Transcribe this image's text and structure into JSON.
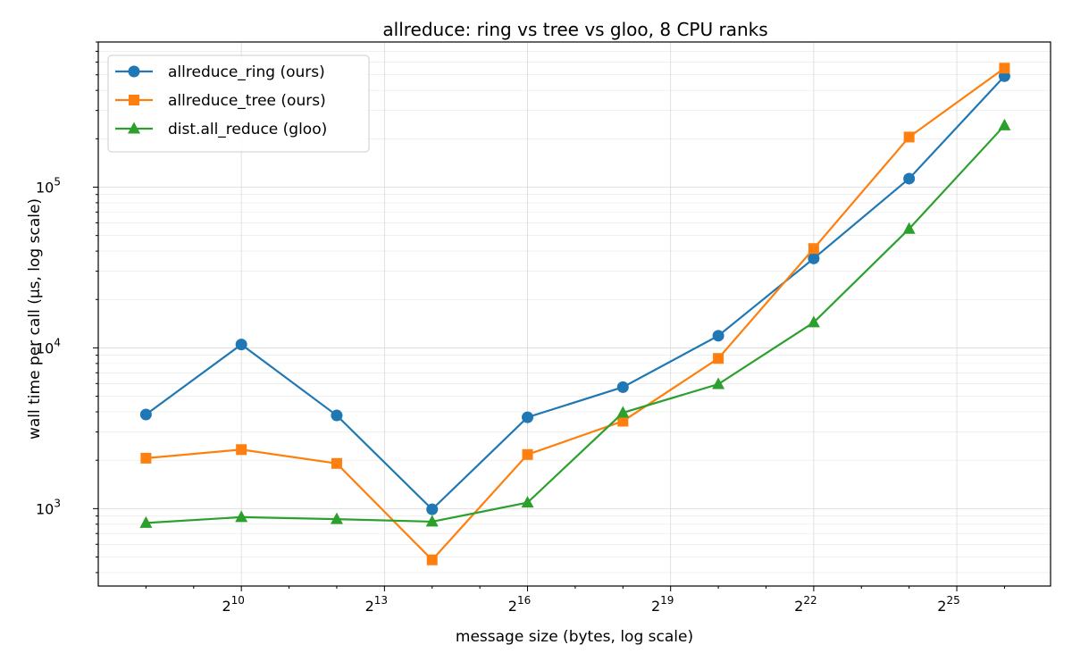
{
  "chart_data": {
    "type": "line",
    "title": "allreduce: ring vs tree vs gloo, 8 CPU ranks",
    "xlabel": "message size (bytes, log scale)",
    "ylabel": "wall time per call (μs, log scale)",
    "x_scale": "log2",
    "y_scale": "log10",
    "xlim": [
      128,
      131072000
    ],
    "ylim": [
      330,
      800000
    ],
    "x_ticks": [
      {
        "value": 1024,
        "base": "2",
        "exp": "10"
      },
      {
        "value": 8192,
        "base": "2",
        "exp": "13"
      },
      {
        "value": 65536,
        "base": "2",
        "exp": "16"
      },
      {
        "value": 524288,
        "base": "2",
        "exp": "19"
      },
      {
        "value": 4194304,
        "base": "2",
        "exp": "22"
      },
      {
        "value": 33554432,
        "base": "2",
        "exp": "25"
      }
    ],
    "y_ticks": [
      {
        "value": 1000,
        "base": "10",
        "exp": "3"
      },
      {
        "value": 10000,
        "base": "10",
        "exp": "4"
      },
      {
        "value": 100000,
        "base": "10",
        "exp": "5"
      }
    ],
    "grid": true,
    "legend_position": "top-left",
    "x": [
      256,
      1024,
      4096,
      16384,
      65536,
      262144,
      1048576,
      4194304,
      16777216,
      67108864
    ],
    "series": [
      {
        "name": "allreduce_ring (ours)",
        "color": "#1f77b4",
        "marker": "circle",
        "values": [
          3850,
          10500,
          3800,
          990,
          3700,
          5700,
          11900,
          36000,
          113000,
          490000
        ]
      },
      {
        "name": "allreduce_tree (ours)",
        "color": "#ff7f0e",
        "marker": "square",
        "values": [
          2060,
          2330,
          1910,
          480,
          2170,
          3500,
          8600,
          41500,
          205000,
          550000
        ]
      },
      {
        "name": "dist.all_reduce (gloo)",
        "color": "#2ca02c",
        "marker": "triangle",
        "values": [
          815,
          885,
          860,
          830,
          1090,
          3950,
          5950,
          14400,
          55000,
          242000
        ]
      }
    ]
  }
}
